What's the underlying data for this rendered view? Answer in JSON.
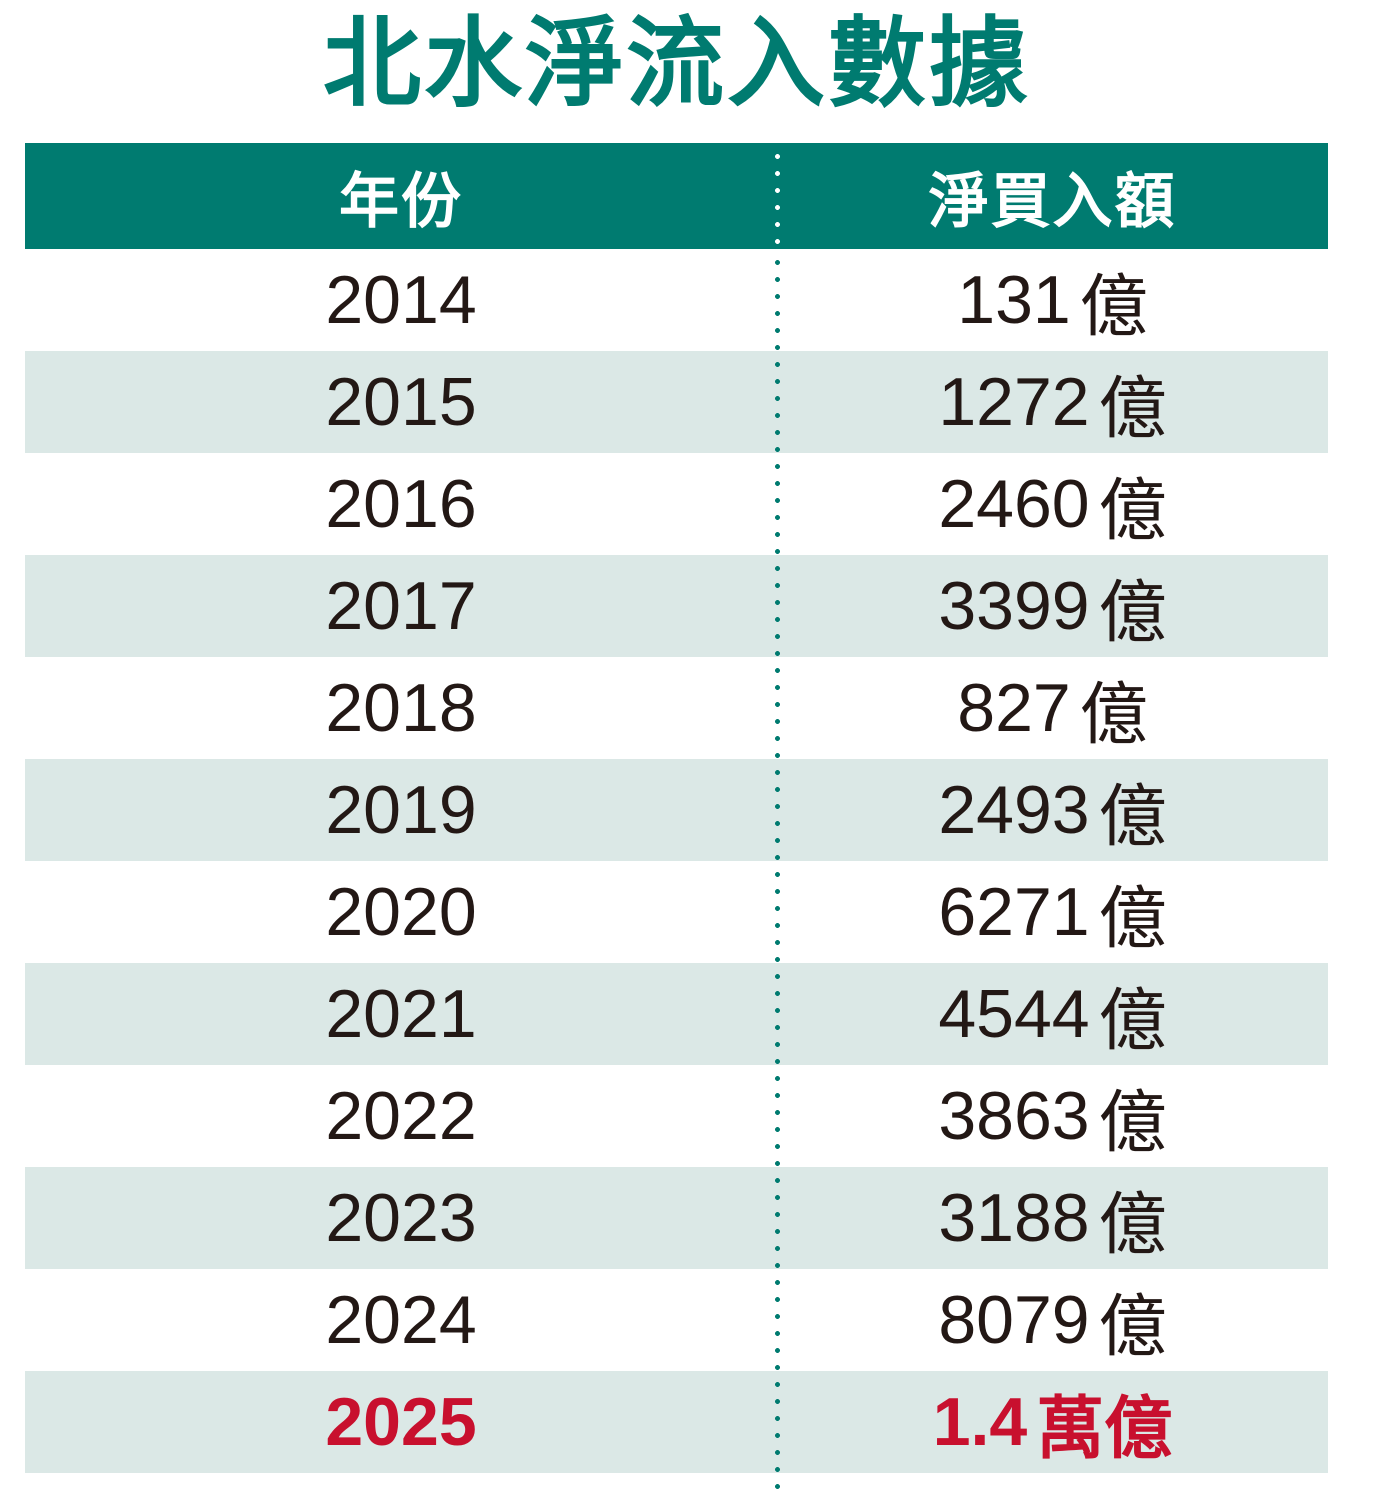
{
  "title": "北水淨流入數據",
  "table": {
    "columns": [
      "年份",
      "淨買入額"
    ],
    "rows": [
      {
        "year": "2014",
        "amount": "131",
        "unit": "億",
        "highlight": false
      },
      {
        "year": "2015",
        "amount": "1272",
        "unit": "億",
        "highlight": false
      },
      {
        "year": "2016",
        "amount": "2460",
        "unit": "億",
        "highlight": false
      },
      {
        "year": "2017",
        "amount": "3399",
        "unit": "億",
        "highlight": false
      },
      {
        "year": "2018",
        "amount": "827",
        "unit": "億",
        "highlight": false
      },
      {
        "year": "2019",
        "amount": "2493",
        "unit": "億",
        "highlight": false
      },
      {
        "year": "2020",
        "amount": "6271",
        "unit": "億",
        "highlight": false
      },
      {
        "year": "2021",
        "amount": "4544",
        "unit": "億",
        "highlight": false
      },
      {
        "year": "2022",
        "amount": "3863",
        "unit": "億",
        "highlight": false
      },
      {
        "year": "2023",
        "amount": "3188",
        "unit": "億",
        "highlight": false
      },
      {
        "year": "2024",
        "amount": "8079",
        "unit": "億",
        "highlight": false
      },
      {
        "year": "2025",
        "amount": "1.4",
        "unit": "萬億",
        "highlight": true
      }
    ]
  },
  "colors": {
    "teal": "#007B70",
    "row_shade": "#DBE8E6",
    "text": "#231815",
    "highlight_red": "#C8102E",
    "header_text": "#FFFFFF"
  },
  "chart_data": {
    "type": "table",
    "title": "北水淨流入數據",
    "columns": [
      "年份",
      "淨買入額"
    ],
    "categories": [
      "2014",
      "2015",
      "2016",
      "2017",
      "2018",
      "2019",
      "2020",
      "2021",
      "2022",
      "2023",
      "2024",
      "2025"
    ],
    "values_text": [
      "131億",
      "1272億",
      "2460億",
      "3399億",
      "827億",
      "2493億",
      "6271億",
      "4544億",
      "3863億",
      "3188億",
      "8079億",
      "1.4萬億"
    ],
    "values_billion_hkd": [
      131,
      1272,
      2460,
      3399,
      827,
      2493,
      6271,
      4544,
      3863,
      3188,
      8079,
      14000
    ],
    "highlight_year": "2025",
    "layout": "alternating row stripes, dotted teal column divider, teal header band"
  }
}
